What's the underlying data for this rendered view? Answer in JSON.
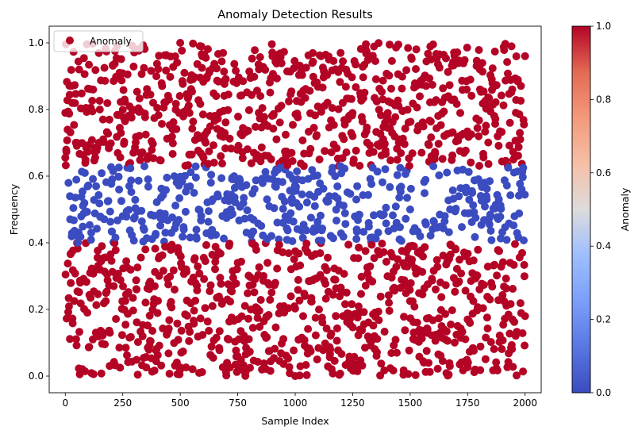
{
  "chart_data": {
    "type": "scatter",
    "title": "Anomaly Detection Results",
    "xlabel": "Sample Index",
    "ylabel": "Frequency",
    "xlim": [
      -70,
      2070
    ],
    "ylim": [
      -0.05,
      1.05
    ],
    "x_ticks": [
      "0",
      "250",
      "500",
      "750",
      "1000",
      "1250",
      "1500",
      "1750",
      "2000"
    ],
    "y_ticks": [
      "0.0",
      "0.2",
      "0.4",
      "0.6",
      "0.8",
      "1.0"
    ],
    "legend": {
      "position": "top-left",
      "entries": [
        "Anomaly"
      ]
    },
    "grid": false,
    "colorbar": {
      "label": "Anomaly",
      "range": [
        0.0,
        1.0
      ],
      "ticks": [
        "0.0",
        "0.2",
        "0.4",
        "0.6",
        "0.8",
        "1.0"
      ],
      "colormap": "coolwarm"
    },
    "series": [
      {
        "name": "Anomaly",
        "color_normal": "#3b4cc0",
        "color_anomaly": "#b40426",
        "x_range": [
          0,
          2000
        ],
        "n_points": 2000,
        "normal_band": [
          0.4,
          0.63
        ],
        "sample_points": [
          {
            "x": 0,
            "y": 0.79,
            "anomaly": 1
          },
          {
            "x": 20,
            "y": 0.54,
            "anomaly": 0
          },
          {
            "x": 60,
            "y": 0.92,
            "anomaly": 1
          },
          {
            "x": 120,
            "y": 0.11,
            "anomaly": 1
          },
          {
            "x": 250,
            "y": 0.48,
            "anomaly": 0
          },
          {
            "x": 310,
            "y": 0.26,
            "anomaly": 1
          },
          {
            "x": 500,
            "y": 1.0,
            "anomaly": 1
          },
          {
            "x": 560,
            "y": 0.55,
            "anomaly": 0
          },
          {
            "x": 750,
            "y": 0.34,
            "anomaly": 1
          },
          {
            "x": 1000,
            "y": 0.0,
            "anomaly": 1
          },
          {
            "x": 1080,
            "y": 0.6,
            "anomaly": 0
          },
          {
            "x": 1250,
            "y": 0.72,
            "anomaly": 1
          },
          {
            "x": 1500,
            "y": 0.5,
            "anomaly": 0
          },
          {
            "x": 1750,
            "y": 0.17,
            "anomaly": 1
          },
          {
            "x": 2000,
            "y": 0.96,
            "anomaly": 1
          }
        ]
      }
    ]
  }
}
